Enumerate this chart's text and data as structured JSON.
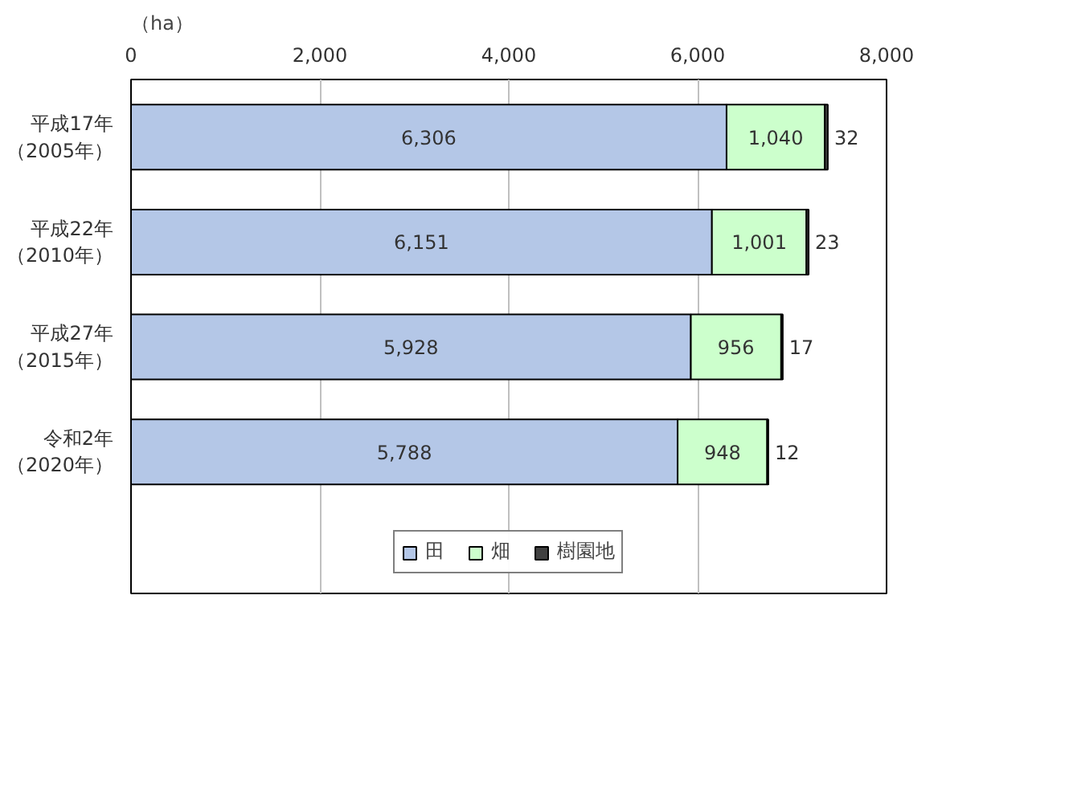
{
  "chart_data": {
    "type": "bar",
    "orientation": "horizontal",
    "stacked": true,
    "categories": [
      "平成17年（2005年）",
      "平成22年（2010年）",
      "平成27年（2015年）",
      "令和2年（2020年）"
    ],
    "series": [
      {
        "name": "田",
        "color": "#b4c7e7",
        "values": [
          6306,
          6151,
          5928,
          5788
        ],
        "value_labels": [
          "6,306",
          "6,151",
          "5,928",
          "5,788"
        ]
      },
      {
        "name": "畑",
        "color": "#ccffcc",
        "values": [
          1040,
          1001,
          956,
          948
        ],
        "value_labels": [
          "1,040",
          "1,001",
          "956",
          "948"
        ]
      },
      {
        "name": "樹園地",
        "color": "#404040",
        "values": [
          32,
          23,
          17,
          12
        ],
        "value_labels": [
          "32",
          "23",
          "17",
          "12"
        ]
      }
    ],
    "xlim": [
      0,
      8000
    ],
    "xticks": [
      0,
      {
        "value": 2000,
        "label": "2,000"
      },
      {
        "value": 4000,
        "label": "4,000"
      },
      {
        "value": 6000,
        "label": "6,000"
      },
      {
        "value": 8000,
        "label": "8,000"
      }
    ],
    "xlabel": "（ha）",
    "grid": "x",
    "legend": "bottom"
  }
}
